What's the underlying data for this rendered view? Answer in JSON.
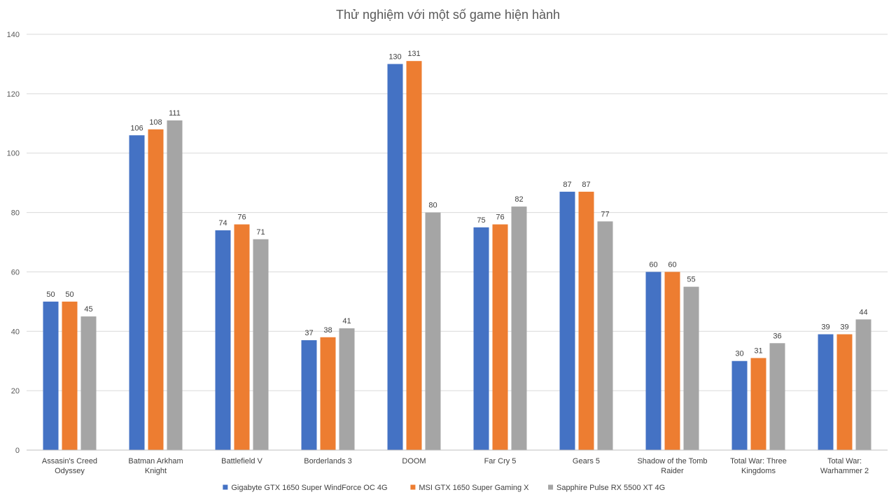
{
  "chart_data": {
    "type": "bar",
    "title": "Thử nghiệm với một số game hiện hành",
    "xlabel": "",
    "ylabel": "",
    "ylim": [
      0,
      140
    ],
    "yticks": [
      0,
      20,
      40,
      60,
      80,
      100,
      120,
      140
    ],
    "grid": true,
    "legend_position": "bottom",
    "data_labels": true,
    "categories": [
      "Assasin's Creed Odyssey",
      "Batman Arkham Knight",
      "Battlefield V",
      "Borderlands 3",
      "DOOM",
      "Far Cry 5",
      "Gears 5",
      "Shadow of the Tomb Raider",
      "Total War: Three Kingdoms",
      "Total War: Warhammer 2"
    ],
    "series": [
      {
        "name": "Gigabyte GTX 1650 Super WindForce OC 4G",
        "color": "#4472c4",
        "values": [
          50,
          106,
          74,
          37,
          130,
          75,
          87,
          60,
          30,
          39
        ]
      },
      {
        "name": "MSI GTX 1650 Super Gaming X",
        "color": "#ed7d31",
        "values": [
          50,
          108,
          76,
          38,
          131,
          76,
          87,
          60,
          31,
          39
        ]
      },
      {
        "name": "Sapphire Pulse RX 5500 XT 4G",
        "color": "#a5a5a5",
        "values": [
          45,
          111,
          71,
          41,
          80,
          82,
          77,
          55,
          36,
          44
        ]
      }
    ]
  }
}
